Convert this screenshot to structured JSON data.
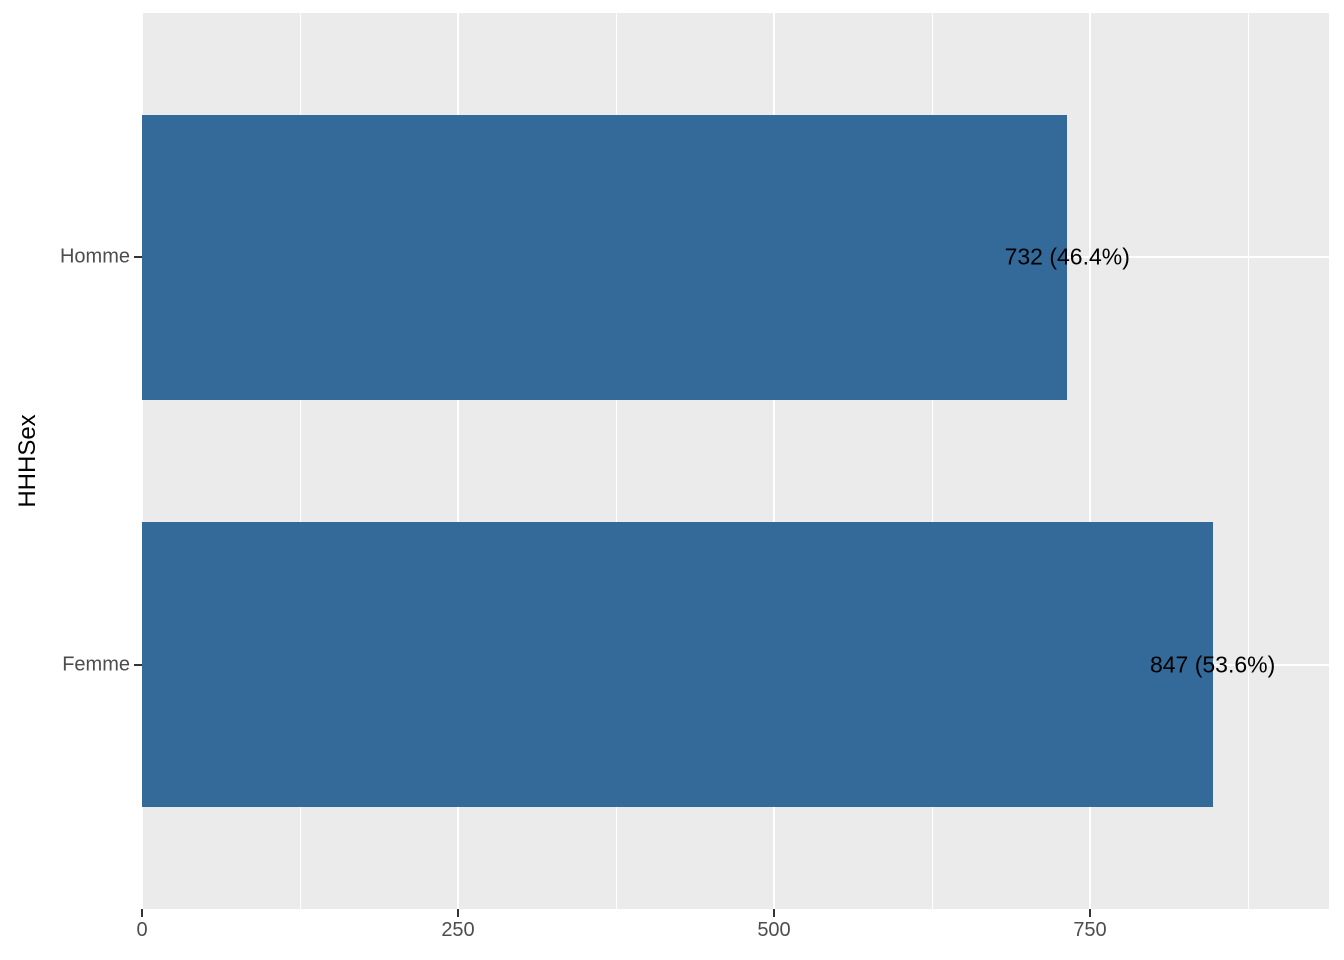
{
  "chart_data": {
    "type": "bar",
    "orientation": "horizontal",
    "title": "",
    "xlabel": "",
    "ylabel": "HHHSex",
    "categories": [
      "Homme",
      "Femme"
    ],
    "values": [
      732,
      847
    ],
    "percentages": [
      46.4,
      53.6
    ],
    "bar_labels": [
      "732 (46.4%)",
      "847 (53.6%)"
    ],
    "x_ticks": [
      0,
      250,
      500,
      750
    ],
    "xlim": [
      0,
      938
    ],
    "grid": true,
    "legend": false,
    "colors": {
      "bar_fill": "#336A99",
      "panel_background": "#EBEBEB",
      "gridline": "#FFFFFF",
      "axis_text": "#4D4D4D",
      "tick_mark": "#333333",
      "bar_label_text": "#000000",
      "axis_title_text": "#000000",
      "page_background": "#FFFFFF"
    }
  }
}
